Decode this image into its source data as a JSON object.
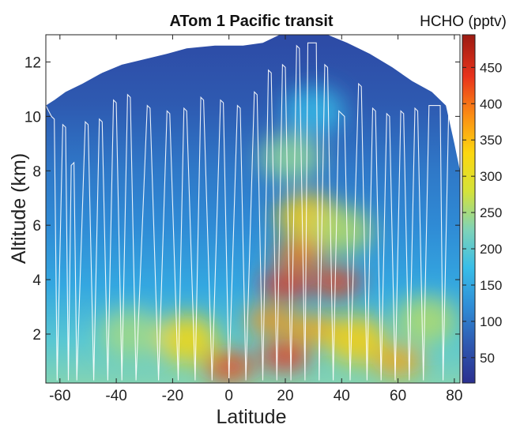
{
  "chart_data": {
    "type": "heatmap",
    "title": "ATom 1 Pacific transit",
    "xlabel": "Latitude",
    "ylabel": "Altitude (km)",
    "xlim": [
      -65,
      82
    ],
    "ylim": [
      0.2,
      13
    ],
    "x_ticks": [
      -60,
      -40,
      -20,
      0,
      20,
      40,
      60,
      80
    ],
    "y_ticks": [
      2,
      4,
      6,
      8,
      10,
      12
    ],
    "colorbar": {
      "label": "HCHO (pptv)",
      "min": 15,
      "max": 495,
      "ticks": [
        50,
        100,
        150,
        200,
        250,
        300,
        350,
        400,
        450
      ],
      "colormap": [
        "#2b2f8f",
        "#2e58b0",
        "#2f8dd6",
        "#38bde8",
        "#7fd3b8",
        "#d4e23a",
        "#fcd70f",
        "#fb8c14",
        "#e8331c",
        "#9c1a12"
      ]
    },
    "top_boundary": [
      [
        -65,
        10.4
      ],
      [
        -62,
        10.6
      ],
      [
        -58,
        10.9
      ],
      [
        -52,
        11.2
      ],
      [
        -45,
        11.6
      ],
      [
        -38,
        11.9
      ],
      [
        -30,
        12.1
      ],
      [
        -22,
        12.3
      ],
      [
        -15,
        12.5
      ],
      [
        -5,
        12.6
      ],
      [
        5,
        12.6
      ],
      [
        12,
        12.7
      ],
      [
        18,
        13.0
      ],
      [
        35,
        13.0
      ],
      [
        42,
        12.7
      ],
      [
        50,
        12.3
      ],
      [
        58,
        11.8
      ],
      [
        65,
        11.3
      ],
      [
        72,
        10.9
      ],
      [
        77,
        10.4
      ],
      [
        80,
        9.0
      ],
      [
        82,
        8.0
      ]
    ],
    "hotspots": [
      {
        "lat": 0,
        "alt": 0.8,
        "value": 430
      },
      {
        "lat": 20,
        "alt": 1.2,
        "value": 440
      },
      {
        "lat": -15,
        "alt": 1.8,
        "value": 330
      },
      {
        "lat": 15,
        "alt": 2.5,
        "value": 380
      },
      {
        "lat": 30,
        "alt": 2.2,
        "value": 370
      },
      {
        "lat": 45,
        "alt": 1.8,
        "value": 340
      },
      {
        "lat": 60,
        "alt": 1.0,
        "value": 370
      },
      {
        "lat": 20,
        "alt": 3.8,
        "value": 440
      },
      {
        "lat": 38,
        "alt": 3.9,
        "value": 430
      },
      {
        "lat": 25,
        "alt": 4.9,
        "value": 400
      },
      {
        "lat": 28,
        "alt": 6.3,
        "value": 340
      },
      {
        "lat": 22,
        "alt": 8.5,
        "value": 240
      },
      {
        "lat": 40,
        "alt": 5.8,
        "value": 260
      },
      {
        "lat": -35,
        "alt": 2.0,
        "value": 250
      },
      {
        "lat": 70,
        "alt": 2.5,
        "value": 260
      },
      {
        "lat": 30,
        "alt": 10.2,
        "value": 170
      }
    ],
    "flight_track": [
      [
        -65,
        10.4
      ],
      [
        -63,
        10.0
      ],
      [
        -62,
        9.9
      ],
      [
        -61,
        0.3
      ],
      [
        -59,
        9.7
      ],
      [
        -58,
        9.6
      ],
      [
        -57,
        0.3
      ],
      [
        -56,
        8.2
      ],
      [
        -55,
        8.3
      ],
      [
        -54,
        0.3
      ],
      [
        -51,
        9.8
      ],
      [
        -50,
        9.7
      ],
      [
        -48,
        0.3
      ],
      [
        -46,
        9.9
      ],
      [
        -45,
        9.8
      ],
      [
        -43,
        0.3
      ],
      [
        -41,
        10.6
      ],
      [
        -40,
        10.5
      ],
      [
        -38,
        0.3
      ],
      [
        -36,
        10.8
      ],
      [
        -35,
        10.7
      ],
      [
        -33,
        0.3
      ],
      [
        -29,
        10.4
      ],
      [
        -28,
        10.3
      ],
      [
        -25,
        0.3
      ],
      [
        -22,
        10.2
      ],
      [
        -21,
        10.1
      ],
      [
        -18,
        0.3
      ],
      [
        -16,
        10.3
      ],
      [
        -15,
        10.2
      ],
      [
        -12,
        0.3
      ],
      [
        -10,
        10.7
      ],
      [
        -9,
        10.6
      ],
      [
        -6,
        0.3
      ],
      [
        -3,
        10.6
      ],
      [
        -2,
        10.5
      ],
      [
        0,
        0.3
      ],
      [
        3,
        10.4
      ],
      [
        4,
        10.3
      ],
      [
        6,
        0.3
      ],
      [
        9,
        10.9
      ],
      [
        10,
        10.8
      ],
      [
        12,
        0.3
      ],
      [
        14,
        11.7
      ],
      [
        15,
        11.6
      ],
      [
        17,
        0.3
      ],
      [
        19,
        11.9
      ],
      [
        20,
        11.8
      ],
      [
        22,
        0.3
      ],
      [
        24,
        12.6
      ],
      [
        25,
        12.5
      ],
      [
        27,
        0.3
      ],
      [
        28,
        12.7
      ],
      [
        31,
        12.7
      ],
      [
        32,
        0.3
      ],
      [
        34,
        11.9
      ],
      [
        35,
        11.8
      ],
      [
        37,
        0.3
      ],
      [
        39,
        10.2
      ],
      [
        41,
        10.0
      ],
      [
        43,
        0.3
      ],
      [
        46,
        11.2
      ],
      [
        47,
        11.1
      ],
      [
        49,
        0.3
      ],
      [
        51,
        10.3
      ],
      [
        52,
        10.2
      ],
      [
        54,
        0.3
      ],
      [
        56,
        10.1
      ],
      [
        57,
        10.0
      ],
      [
        59,
        0.3
      ],
      [
        61,
        10.2
      ],
      [
        62,
        10.1
      ],
      [
        64,
        0.3
      ],
      [
        66,
        10.3
      ],
      [
        67,
        10.2
      ],
      [
        69,
        0.3
      ],
      [
        71,
        10.4
      ],
      [
        75,
        10.4
      ],
      [
        76,
        0.3
      ],
      [
        78,
        10.2
      ],
      [
        79,
        10.1
      ]
    ]
  }
}
